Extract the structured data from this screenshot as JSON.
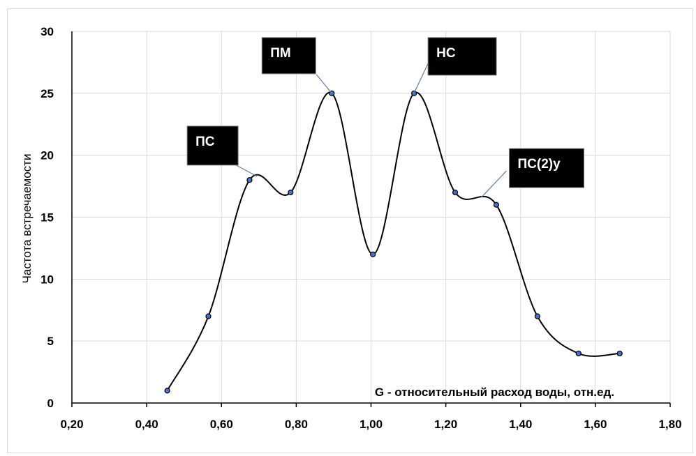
{
  "chart_data": {
    "type": "line",
    "smooth": true,
    "title": "",
    "xlabel": "G - относительный расход воды, отн.ед.",
    "ylabel": "Частота встречаемости",
    "xlim": [
      0.2,
      1.8
    ],
    "ylim": [
      0,
      30
    ],
    "x_ticks": [
      "0,20",
      "0,40",
      "0,60",
      "0,80",
      "1,00",
      "1,20",
      "1,40",
      "1,60",
      "1,80"
    ],
    "y_ticks": [
      "0",
      "5",
      "10",
      "15",
      "20",
      "25",
      "30"
    ],
    "grid": "vertical and horizontal",
    "series": [
      {
        "x": [
          0.455,
          0.565,
          0.675,
          0.785,
          0.895,
          1.005,
          1.115,
          1.225,
          1.335,
          1.445,
          1.555,
          1.665
        ],
        "y": [
          1,
          7,
          18,
          17,
          25,
          12,
          25,
          17,
          16,
          7,
          4,
          4
        ]
      }
    ],
    "annotations": [
      {
        "text": "ПС",
        "x": 0.695,
        "y": 18.3
      },
      {
        "text": "ПМ",
        "x": 0.895,
        "y": 25
      },
      {
        "text": "НС",
        "x": 1.115,
        "y": 25
      },
      {
        "text": "ПС(2)у",
        "x": 1.295,
        "y": 16.6
      }
    ],
    "colors": {
      "line": "#000000",
      "marker_fill": "#4472c4",
      "grid": "#d9d9d9",
      "annotation_box": "#000000",
      "leader": "#5b7bb8"
    }
  }
}
